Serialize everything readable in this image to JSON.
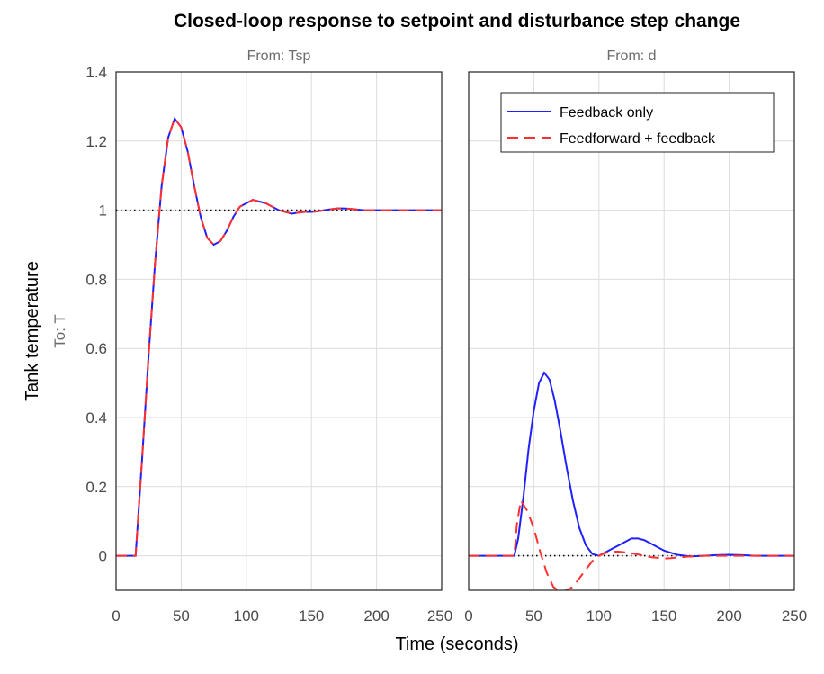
{
  "chart_data": {
    "type": "line",
    "title": "Closed-loop response to setpoint and disturbance step change",
    "xlabel": "Time (seconds)",
    "ylabel": "Tank temperature",
    "output_label": "To: T",
    "grid": true,
    "legend": {
      "position": "top-right of right panel",
      "entries": [
        "Feedback only",
        "Feedforward + feedback"
      ]
    },
    "colors": {
      "feedback": "#2020ff",
      "feedforward": "#ff3030",
      "reference": "#000000"
    },
    "xlim": [
      0,
      250
    ],
    "ylim": [
      -0.1,
      1.4
    ],
    "xticks": [
      "0",
      "50",
      "100",
      "150",
      "200",
      "250"
    ],
    "yticks": [
      "0",
      "0.2",
      "0.4",
      "0.6",
      "0.8",
      "1",
      "1.2",
      "1.4"
    ],
    "panels": [
      {
        "subtitle": "From: Tsp",
        "xtick_last": "250",
        "reference": 1,
        "series": [
          {
            "name": "Feedback only",
            "x": [
              0,
              15,
              20,
              25,
              30,
              35,
              40,
              45,
              50,
              55,
              60,
              65,
              70,
              75,
              80,
              85,
              90,
              95,
              100,
              105,
              110,
              115,
              120,
              125,
              130,
              135,
              140,
              145,
              150,
              155,
              160,
              165,
              170,
              175,
              180,
              185,
              190,
              195,
              200,
              210,
              220,
              230,
              240,
              250
            ],
            "y": [
              0,
              0,
              0.28,
              0.58,
              0.85,
              1.07,
              1.21,
              1.265,
              1.24,
              1.17,
              1.07,
              0.98,
              0.92,
              0.9,
              0.91,
              0.94,
              0.98,
              1.01,
              1.02,
              1.03,
              1.025,
              1.02,
              1.01,
              1.0,
              0.995,
              0.99,
              0.993,
              0.995,
              0.995,
              0.997,
              1.0,
              1.003,
              1.005,
              1.005,
              1.004,
              1.002,
              1.0,
              1.0,
              1.0,
              1.0,
              1.0,
              1.0,
              1.0,
              1.0
            ]
          },
          {
            "name": "Feedforward + feedback",
            "x": [
              0,
              15,
              20,
              25,
              30,
              35,
              40,
              45,
              50,
              55,
              60,
              65,
              70,
              75,
              80,
              85,
              90,
              95,
              100,
              105,
              110,
              115,
              120,
              125,
              130,
              135,
              140,
              145,
              150,
              155,
              160,
              165,
              170,
              175,
              180,
              185,
              190,
              195,
              200,
              210,
              220,
              230,
              240,
              250
            ],
            "y": [
              0,
              0,
              0.28,
              0.58,
              0.85,
              1.07,
              1.21,
              1.265,
              1.24,
              1.17,
              1.07,
              0.98,
              0.92,
              0.9,
              0.91,
              0.94,
              0.98,
              1.01,
              1.02,
              1.03,
              1.025,
              1.02,
              1.01,
              1.0,
              0.995,
              0.99,
              0.993,
              0.995,
              0.995,
              0.997,
              1.0,
              1.003,
              1.005,
              1.005,
              1.004,
              1.002,
              1.0,
              1.0,
              1.0,
              1.0,
              1.0,
              1.0,
              1.0,
              1.0
            ]
          }
        ]
      },
      {
        "subtitle": "From: d",
        "xtick_last": "250",
        "reference": 0,
        "series": [
          {
            "name": "Feedback only",
            "x": [
              0,
              35,
              38,
              42,
              46,
              50,
              54,
              58,
              62,
              66,
              70,
              75,
              80,
              85,
              90,
              95,
              100,
              105,
              110,
              115,
              120,
              125,
              130,
              135,
              140,
              145,
              150,
              160,
              170,
              180,
              190,
              200,
              210,
              220,
              230,
              240,
              250
            ],
            "y": [
              0,
              0,
              0.05,
              0.17,
              0.31,
              0.42,
              0.5,
              0.53,
              0.51,
              0.45,
              0.37,
              0.26,
              0.16,
              0.08,
              0.03,
              0.005,
              0.0,
              0.01,
              0.02,
              0.03,
              0.04,
              0.05,
              0.05,
              0.045,
              0.035,
              0.025,
              0.015,
              0.003,
              -0.002,
              0.0,
              0.002,
              0.003,
              0.002,
              0.0,
              0.0,
              0.0,
              0.0
            ]
          },
          {
            "name": "Feedforward + feedback",
            "x": [
              0,
              35,
              37,
              40,
              45,
              50,
              55,
              60,
              65,
              70,
              75,
              80,
              85,
              90,
              95,
              100,
              105,
              110,
              115,
              120,
              125,
              130,
              135,
              140,
              145,
              150,
              155,
              160,
              170,
              180,
              190,
              200,
              210,
              220,
              230,
              240,
              250
            ],
            "y": [
              0,
              0,
              0.09,
              0.16,
              0.13,
              0.08,
              0.01,
              -0.05,
              -0.09,
              -0.105,
              -0.1,
              -0.09,
              -0.065,
              -0.04,
              -0.015,
              0.0,
              0.008,
              0.012,
              0.012,
              0.01,
              0.007,
              0.004,
              0.0,
              -0.004,
              -0.006,
              -0.008,
              -0.007,
              -0.005,
              -0.002,
              0.0,
              0.0,
              0.0,
              0.0,
              0.0,
              0.0,
              0.0,
              0.0
            ]
          }
        ]
      }
    ]
  }
}
